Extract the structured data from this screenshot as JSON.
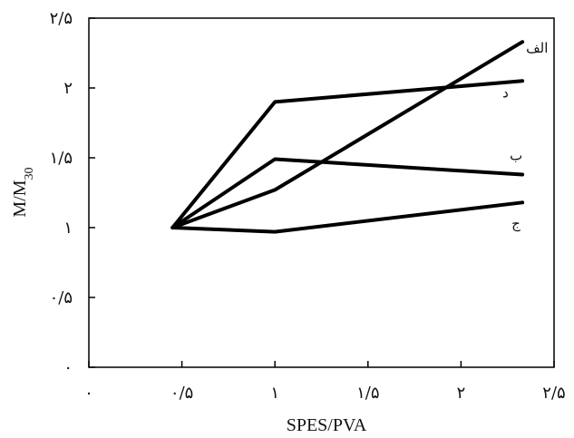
{
  "chart_data": {
    "type": "line",
    "xlabel": "SPES/PVA",
    "ylabel": "M/M",
    "ylabel_sub": "30",
    "xlim": [
      0,
      2.5
    ],
    "ylim": [
      0,
      2.5
    ],
    "x_ticks": [
      0,
      0.5,
      1,
      1.5,
      2,
      2.5
    ],
    "x_tick_labels": [
      "٠",
      "٠/۵",
      "۱",
      "۱/۵",
      "۲",
      "۲/۵"
    ],
    "y_ticks": [
      0,
      0.5,
      1,
      1.5,
      2,
      2.5
    ],
    "y_tick_labels": [
      "٠",
      "٠/۵",
      "۱",
      "۱/۵",
      "۲",
      "۲/۵"
    ],
    "grid": false,
    "legend": "series labels at right end of each line",
    "series": [
      {
        "name": "الف",
        "x": [
          0.45,
          1.0,
          2.33
        ],
        "y": [
          1.0,
          1.27,
          2.33
        ]
      },
      {
        "name": "د",
        "x": [
          0.45,
          1.0,
          2.33
        ],
        "y": [
          1.0,
          1.9,
          2.05
        ]
      },
      {
        "name": "ب",
        "x": [
          0.45,
          1.0,
          2.33
        ],
        "y": [
          1.0,
          1.49,
          1.38
        ]
      },
      {
        "name": "ج",
        "x": [
          0.45,
          1.0,
          2.33
        ],
        "y": [
          1.0,
          0.97,
          1.18
        ]
      }
    ]
  }
}
